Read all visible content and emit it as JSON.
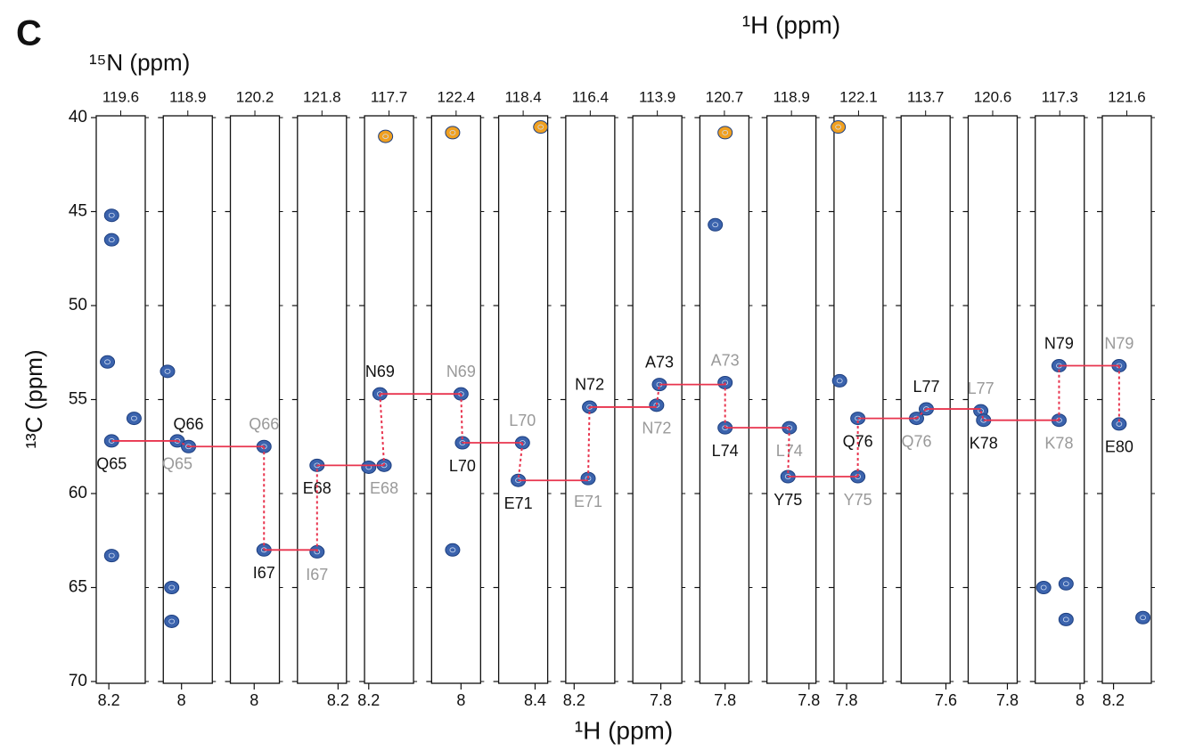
{
  "panel_label": "C",
  "top_axis_label": "¹H (ppm)",
  "n_axis_label": "¹⁵N (ppm)",
  "chart_data": {
    "type": "strip",
    "y_label": "¹³C (ppm)",
    "x_label": "¹H (ppm)",
    "ylim": [
      40,
      70
    ],
    "yticks": [
      40,
      45,
      50,
      55,
      60,
      65,
      70
    ],
    "strips": [
      {
        "n": "119.6",
        "xlim": [
          8.11,
          8.46
        ],
        "xtick": 8.2,
        "peaks": [
          {
            "h": 8.22,
            "c": 57.2,
            "color": "#3b63ad",
            "label": "Q65",
            "label_color": "#111111",
            "below": true
          },
          {
            "h": 8.22,
            "c": 45.2,
            "color": "#3b63ad"
          },
          {
            "h": 8.22,
            "c": 46.5,
            "color": "#3b63ad"
          },
          {
            "h": 8.19,
            "c": 53.0,
            "color": "#3b63ad"
          },
          {
            "h": 8.22,
            "c": 63.3,
            "color": "#3b63ad"
          },
          {
            "h": 8.38,
            "c": 56.0,
            "color": "#3b63ad"
          }
        ]
      },
      {
        "n": "118.9",
        "xlim": [
          7.87,
          8.22
        ],
        "xtick": 8.0,
        "peaks": [
          {
            "h": 7.97,
            "c": 57.2,
            "color": "#3b63ad",
            "label": "Q65",
            "label_color": "#999999",
            "below": true
          },
          {
            "h": 8.05,
            "c": 57.5,
            "color": "#3b63ad",
            "label": "Q66",
            "label_color": "#111111",
            "below": false
          },
          {
            "h": 7.93,
            "c": 65.0,
            "color": "#3b63ad"
          },
          {
            "h": 7.93,
            "c": 66.8,
            "color": "#3b63ad"
          },
          {
            "h": 7.9,
            "c": 53.5,
            "color": "#3b63ad"
          }
        ]
      },
      {
        "n": "120.2",
        "xlim": [
          7.83,
          8.18
        ],
        "xtick": 8.0,
        "peaks": [
          {
            "h": 8.07,
            "c": 57.5,
            "color": "#3b63ad",
            "label": "Q66",
            "label_color": "#999999",
            "below": false
          },
          {
            "h": 8.07,
            "c": 63.0,
            "color": "#3b63ad",
            "label": "I67",
            "label_color": "#111111",
            "below": true
          }
        ]
      },
      {
        "n": "121.8",
        "xlim": [
          7.91,
          8.26
        ],
        "xtick": 8.2,
        "peaks": [
          {
            "h": 8.05,
            "c": 63.1,
            "color": "#3b63ad",
            "label": "I67",
            "label_color": "#999999",
            "below": true
          },
          {
            "h": 8.05,
            "c": 58.5,
            "color": "#3b63ad",
            "label": "E68",
            "label_color": "#111111",
            "below": true
          }
        ]
      },
      {
        "n": "117.7",
        "xlim": [
          8.17,
          8.52
        ],
        "xtick": 8.2,
        "peaks": [
          {
            "h": 8.28,
            "c": 54.7,
            "color": "#3b63ad",
            "label": "N69",
            "label_color": "#111111",
            "below": false
          },
          {
            "h": 8.31,
            "c": 58.5,
            "color": "#3b63ad",
            "label": "E68",
            "label_color": "#999999",
            "below": true
          },
          {
            "h": 8.32,
            "c": 41.0,
            "color": "#f0a020"
          },
          {
            "h": 8.2,
            "c": 58.6,
            "color": "#3b63ad"
          }
        ]
      },
      {
        "n": "122.4",
        "xlim": [
          7.79,
          8.14
        ],
        "xtick": 8.0,
        "peaks": [
          {
            "h": 8.0,
            "c": 54.7,
            "color": "#3b63ad",
            "label": "N69",
            "label_color": "#999999",
            "below": false
          },
          {
            "h": 8.01,
            "c": 57.3,
            "color": "#3b63ad",
            "label": "L70",
            "label_color": "#111111",
            "below": true
          },
          {
            "h": 7.94,
            "c": 40.8,
            "color": "#f0a020"
          },
          {
            "h": 7.94,
            "c": 63.0,
            "color": "#3b63ad"
          }
        ]
      },
      {
        "n": "118.4",
        "xlim": [
          8.14,
          8.49
        ],
        "xtick": 8.4,
        "peaks": [
          {
            "h": 8.31,
            "c": 57.3,
            "color": "#3b63ad",
            "label": "L70",
            "label_color": "#999999",
            "below": false
          },
          {
            "h": 8.28,
            "c": 59.3,
            "color": "#3b63ad",
            "label": "E71",
            "label_color": "#111111",
            "below": true
          },
          {
            "h": 8.44,
            "c": 40.5,
            "color": "#f0a020"
          }
        ]
      },
      {
        "n": "116.4",
        "xlim": [
          8.14,
          8.49
        ],
        "xtick": 8.2,
        "peaks": [
          {
            "h": 8.3,
            "c": 59.2,
            "color": "#3b63ad",
            "label": "E71",
            "label_color": "#999999",
            "below": true
          },
          {
            "h": 8.31,
            "c": 55.4,
            "color": "#3b63ad",
            "label": "N72",
            "label_color": "#111111",
            "below": false
          }
        ]
      },
      {
        "n": "113.9",
        "xlim": [
          7.6,
          7.95
        ],
        "xtick": 7.8,
        "peaks": [
          {
            "h": 7.77,
            "c": 55.3,
            "color": "#3b63ad",
            "label": "N72",
            "label_color": "#999999",
            "below": true
          },
          {
            "h": 7.79,
            "c": 54.2,
            "color": "#3b63ad",
            "label": "A73",
            "label_color": "#111111",
            "below": false
          }
        ]
      },
      {
        "n": "120.7",
        "xlim": [
          7.62,
          7.97
        ],
        "xtick": 7.8,
        "peaks": [
          {
            "h": 7.8,
            "c": 54.1,
            "color": "#3b63ad",
            "label": "A73",
            "label_color": "#999999",
            "below": false
          },
          {
            "h": 7.8,
            "c": 56.5,
            "color": "#3b63ad",
            "label": "L74",
            "label_color": "#111111",
            "below": true
          },
          {
            "h": 7.8,
            "c": 40.8,
            "color": "#f0a020"
          },
          {
            "h": 7.73,
            "c": 45.7,
            "color": "#3b63ad"
          }
        ]
      },
      {
        "n": "118.9",
        "xlim": [
          7.5,
          7.85
        ],
        "xtick": 7.8,
        "peaks": [
          {
            "h": 7.66,
            "c": 56.5,
            "color": "#3b63ad",
            "label": "L74",
            "label_color": "#999999",
            "below": true
          },
          {
            "h": 7.65,
            "c": 59.1,
            "color": "#3b63ad",
            "label": "Y75",
            "label_color": "#111111",
            "below": true
          }
        ]
      },
      {
        "n": "122.1",
        "xlim": [
          7.71,
          8.06
        ],
        "xtick": 7.8,
        "peaks": [
          {
            "h": 7.88,
            "c": 59.1,
            "color": "#3b63ad",
            "label": "Y75",
            "label_color": "#999999",
            "below": true
          },
          {
            "h": 7.88,
            "c": 56.0,
            "color": "#3b63ad",
            "label": "Q76",
            "label_color": "#111111",
            "below": true
          },
          {
            "h": 7.74,
            "c": 40.5,
            "color": "#f0a020"
          },
          {
            "h": 7.75,
            "c": 54.0,
            "color": "#3b63ad"
          }
        ]
      },
      {
        "n": "113.7",
        "xlim": [
          7.28,
          7.63
        ],
        "xtick": 7.6,
        "peaks": [
          {
            "h": 7.39,
            "c": 56.0,
            "color": "#3b63ad",
            "label": "Q76",
            "label_color": "#999999",
            "below": true
          },
          {
            "h": 7.46,
            "c": 55.5,
            "color": "#3b63ad",
            "label": "L77",
            "label_color": "#111111",
            "below": false
          }
        ]
      },
      {
        "n": "120.6",
        "xlim": [
          7.52,
          7.87
        ],
        "xtick": 7.8,
        "peaks": [
          {
            "h": 7.61,
            "c": 55.6,
            "color": "#3b63ad",
            "label": "L77",
            "label_color": "#999999",
            "below": false
          },
          {
            "h": 7.63,
            "c": 56.1,
            "color": "#3b63ad",
            "label": "K78",
            "label_color": "#111111",
            "below": true
          }
        ]
      },
      {
        "n": "117.3",
        "xlim": [
          7.68,
          8.03
        ],
        "xtick": 8.0,
        "peaks": [
          {
            "h": 7.85,
            "c": 56.1,
            "color": "#3b63ad",
            "label": "K78",
            "label_color": "#999999",
            "below": true
          },
          {
            "h": 7.85,
            "c": 53.2,
            "color": "#3b63ad",
            "label": "N79",
            "label_color": "#111111",
            "below": false
          },
          {
            "h": 7.74,
            "c": 65.0,
            "color": "#3b63ad"
          },
          {
            "h": 7.9,
            "c": 64.8,
            "color": "#3b63ad"
          },
          {
            "h": 7.9,
            "c": 66.7,
            "color": "#3b63ad"
          }
        ]
      },
      {
        "n": "121.6",
        "xlim": [
          8.12,
          8.47
        ],
        "xtick": 8.2,
        "peaks": [
          {
            "h": 8.24,
            "c": 53.2,
            "color": "#3b63ad",
            "label": "N79",
            "label_color": "#999999",
            "below": false
          },
          {
            "h": 8.24,
            "c": 56.3,
            "color": "#3b63ad",
            "label": "E80",
            "label_color": "#111111",
            "below": true
          },
          {
            "h": 8.41,
            "c": 66.6,
            "color": "#3b63ad"
          }
        ]
      }
    ]
  }
}
